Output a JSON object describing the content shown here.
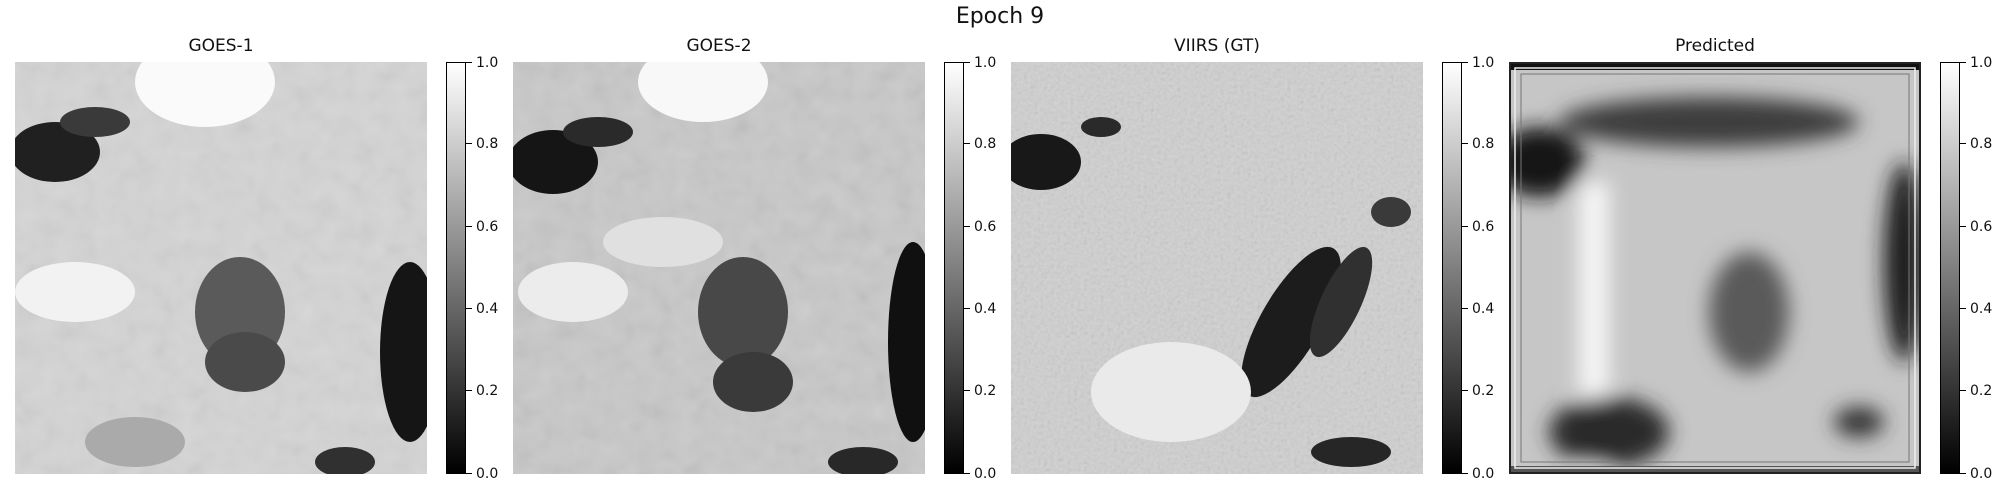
{
  "figure": {
    "title": "Epoch 9"
  },
  "panels": [
    {
      "title": "GOES-1",
      "image": "low-resolution grayscale satellite image (blocky pixels)"
    },
    {
      "title": "GOES-2",
      "image": "low-resolution grayscale satellite image (blocky pixels)"
    },
    {
      "title": "VIIRS (GT)",
      "image": "high-resolution grayscale satellite image"
    },
    {
      "title": "Predicted",
      "image": "blurry grayscale predicted image with framed border artifacts"
    }
  ],
  "colorbar": {
    "ticks": [
      "0.0",
      "0.2",
      "0.4",
      "0.6",
      "0.8",
      "1.0"
    ],
    "colormap": "gray",
    "range": [
      0.0,
      1.0
    ]
  }
}
